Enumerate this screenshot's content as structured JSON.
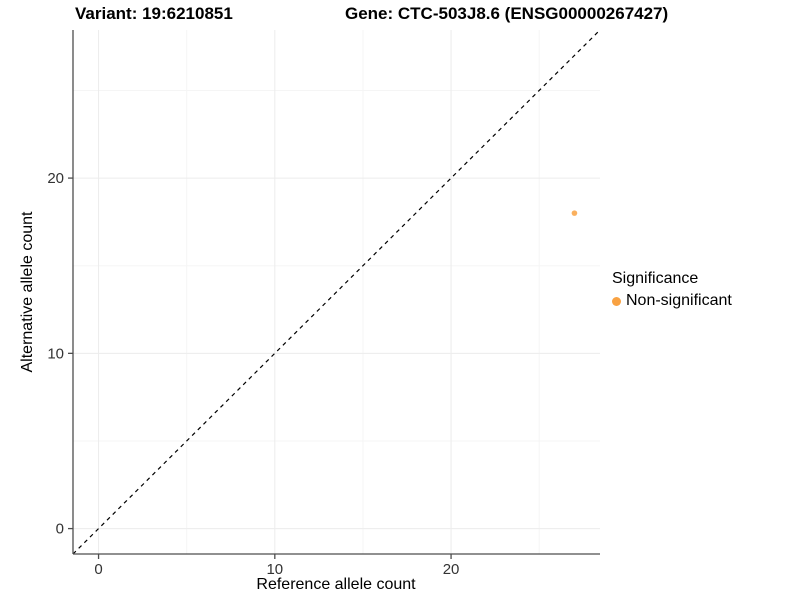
{
  "header": {
    "title_left": "Variant: 19:6210851",
    "title_right": "Gene: CTC-503J8.6 (ENSG00000267427)"
  },
  "colors": {
    "point_orange": "#F9A242",
    "axis_line": "#4d4d4d",
    "tick_label": "#333333",
    "grid_major": "#ececec",
    "grid_minor": "#f5f5f5",
    "reference_line": "#000000",
    "background": "#ffffff"
  },
  "chart_data": {
    "type": "scatter",
    "title": "Variant: 19:6210851  Gene: CTC-503J8.6 (ENSG00000267427)",
    "xlabel": "Reference allele count",
    "ylabel": "Alternative allele count",
    "xlim": [
      -1.45,
      28.45
    ],
    "ylim": [
      -1.45,
      28.45
    ],
    "x_ticks": [
      0,
      10,
      20
    ],
    "y_ticks": [
      0,
      10,
      20
    ],
    "x_minor_ticks": [
      5,
      15,
      25
    ],
    "y_minor_ticks": [
      5,
      15,
      25
    ],
    "grid": true,
    "reference_line": {
      "type": "identity",
      "equation": "y = x",
      "style": "dashed"
    },
    "series": [
      {
        "name": "Non-significant",
        "color": "#F9A242",
        "points": [
          {
            "x": 27,
            "y": 18
          }
        ]
      }
    ],
    "legend": {
      "title": "Significance",
      "position": "right",
      "entries": [
        {
          "label": "Non-significant",
          "color": "#F9A242"
        }
      ]
    }
  }
}
